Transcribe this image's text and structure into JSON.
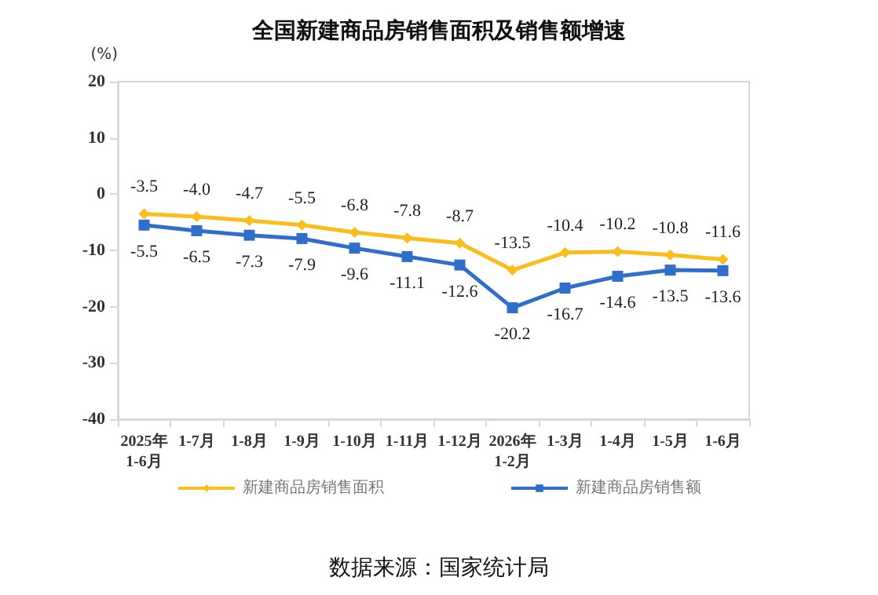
{
  "chart_data": {
    "type": "line",
    "title": "全国新建商品房销售面积及销售额增速",
    "ylabel": "(%)",
    "categories": [
      "2025年\n1-6月",
      "1-7月",
      "1-8月",
      "1-9月",
      "1-10月",
      "1-11月",
      "1-12月",
      "2026年\n1-2月",
      "1-3月",
      "1-4月",
      "1-5月",
      "1-6月"
    ],
    "series": [
      {
        "name": "新建商品房销售面积",
        "color": "#fbbd1c",
        "marker": "diamond",
        "values": [
          -3.5,
          -4.0,
          -4.7,
          -5.5,
          -6.8,
          -7.8,
          -8.7,
          -13.5,
          -10.4,
          -10.2,
          -10.8,
          -11.6
        ],
        "value_labels": [
          "-3.5",
          "-4.0",
          "-4.7",
          "-5.5",
          "-6.8",
          "-7.8",
          "-8.7",
          "-13.5",
          "-10.4",
          "-10.2",
          "-10.8",
          "-11.6"
        ]
      },
      {
        "name": "新建商品房销售额",
        "color": "#2f6fcb",
        "marker": "square",
        "values": [
          -5.5,
          -6.5,
          -7.3,
          -7.9,
          -9.6,
          -11.1,
          -12.6,
          -20.2,
          -16.7,
          -14.6,
          -13.5,
          -13.6
        ],
        "value_labels": [
          "-5.5",
          "-6.5",
          "-7.3",
          "-7.9",
          "-9.6",
          "-11.1",
          "-12.6",
          "-20.2",
          "-16.7",
          "-14.6",
          "-13.5",
          "-13.6"
        ]
      }
    ],
    "ylim": [
      -40,
      20
    ],
    "yticks": [
      -40,
      -30,
      -20,
      -10,
      0,
      10,
      20
    ],
    "grid": false,
    "legend": "bottom",
    "annotations": [
      "数据来源：国家统计局"
    ]
  }
}
